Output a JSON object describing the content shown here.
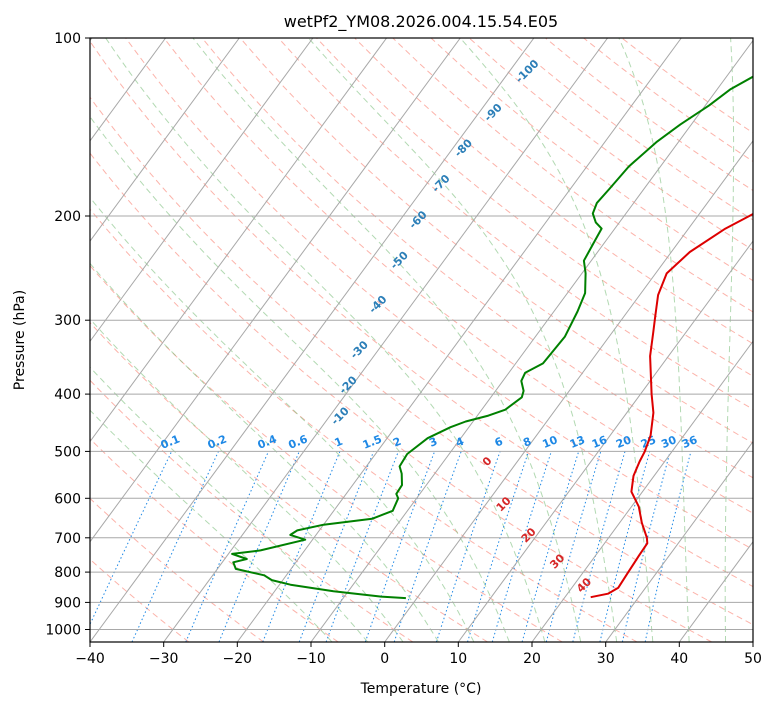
{
  "chart_data": {
    "type": "line",
    "title": "wetPf2_YM08.2026.004.15.54.E05",
    "xlabel": "Temperature (°C)",
    "ylabel": "Pressure (hPa)",
    "xlim": [
      -40,
      50
    ],
    "ylim": [
      1050,
      100
    ],
    "y_scale": "log",
    "x_ticks": [
      "−40",
      "−30",
      "−20",
      "−10",
      "0",
      "10",
      "20",
      "30",
      "40",
      "50"
    ],
    "y_ticks": [
      "1000",
      "900",
      "800",
      "700",
      "600",
      "500",
      "400",
      "300",
      "200",
      "100"
    ],
    "grid": true,
    "series": [
      {
        "color": "#dd0000",
        "points": [
          [
            23.5,
            882
          ],
          [
            25.5,
            870
          ],
          [
            26.3,
            850
          ],
          [
            26.1,
            800
          ],
          [
            25.9,
            750
          ],
          [
            25.8,
            715
          ],
          [
            25.2,
            700
          ],
          [
            23.0,
            660
          ],
          [
            21.0,
            620
          ],
          [
            18.5,
            585
          ],
          [
            17.2,
            550
          ],
          [
            16.6,
            520
          ],
          [
            16.3,
            500
          ],
          [
            15.5,
            470
          ],
          [
            13.6,
            430
          ],
          [
            11.5,
            400
          ],
          [
            7.5,
            345
          ],
          [
            5.6,
            315
          ],
          [
            4.2,
            295
          ],
          [
            2.5,
            272
          ],
          [
            1.5,
            250
          ],
          [
            2.5,
            230
          ],
          [
            5.0,
            210
          ],
          [
            7.0,
            200
          ],
          [
            10.0,
            185
          ],
          [
            10.2,
            160
          ],
          [
            9.8,
            140
          ],
          [
            9.2,
            125
          ],
          [
            9.5,
            115
          ],
          [
            10.5,
            105
          ],
          [
            11.2,
            100
          ]
        ]
      },
      {
        "color": "#008000",
        "points": [
          [
            -1.5,
            885
          ],
          [
            -5.0,
            880
          ],
          [
            -12.0,
            862
          ],
          [
            -18.5,
            840
          ],
          [
            -21.5,
            825
          ],
          [
            -23.0,
            810
          ],
          [
            -27.5,
            790
          ],
          [
            -28.5,
            770
          ],
          [
            -27.0,
            760
          ],
          [
            -29.5,
            745
          ],
          [
            -26.0,
            735
          ],
          [
            -21.0,
            705
          ],
          [
            -23.5,
            692
          ],
          [
            -23.0,
            680
          ],
          [
            -20.0,
            665
          ],
          [
            -14.0,
            650
          ],
          [
            -12.0,
            630
          ],
          [
            -12.5,
            600
          ],
          [
            -13.2,
            590
          ],
          [
            -13.3,
            570
          ],
          [
            -14.5,
            545
          ],
          [
            -15.5,
            530
          ],
          [
            -15.7,
            505
          ],
          [
            -14.5,
            475
          ],
          [
            -12.5,
            455
          ],
          [
            -11.0,
            445
          ],
          [
            -8.5,
            435
          ],
          [
            -6.8,
            425
          ],
          [
            -5.8,
            405
          ],
          [
            -6.2,
            395
          ],
          [
            -7.5,
            380
          ],
          [
            -7.8,
            368
          ],
          [
            -6.3,
            355
          ],
          [
            -6.0,
            320
          ],
          [
            -6.8,
            290
          ],
          [
            -7.6,
            270
          ],
          [
            -9.5,
            250
          ],
          [
            -11.0,
            238
          ],
          [
            -11.5,
            220
          ],
          [
            -11.8,
            210
          ],
          [
            -13.2,
            205
          ],
          [
            -14.5,
            198
          ],
          [
            -15.0,
            190
          ],
          [
            -14.7,
            180
          ],
          [
            -14.3,
            165
          ],
          [
            -13.0,
            150
          ],
          [
            -11.5,
            140
          ],
          [
            -9.5,
            130
          ],
          [
            -8.2,
            122
          ],
          [
            -6.0,
            115
          ],
          [
            -3.0,
            108
          ],
          [
            0.5,
            100
          ]
        ]
      }
    ],
    "dry_adiabat_labels": [
      "-100",
      "-90",
      "-80",
      "-70",
      "-60",
      "-50",
      "-40",
      "-30",
      "-20",
      "-10"
    ],
    "mixing_ratio_labels": [
      "0.1",
      "0.2",
      "0.4",
      "0.6",
      "1",
      "1.5",
      "2",
      "3",
      "4",
      "6",
      "8",
      "10",
      "13",
      "16",
      "20",
      "25",
      "30",
      "36"
    ],
    "moist_adiabat_labels": [
      "0",
      "10",
      "20",
      "30",
      "40"
    ]
  },
  "colors": {
    "temperature": "#dd0000",
    "dewpoint": "#008000",
    "dry_adiabat": "#fa8072",
    "moist_adiabat": "#7fbf7f",
    "mixing_ratio": "#1e88e5",
    "isotherm": "#a8a8a8"
  }
}
